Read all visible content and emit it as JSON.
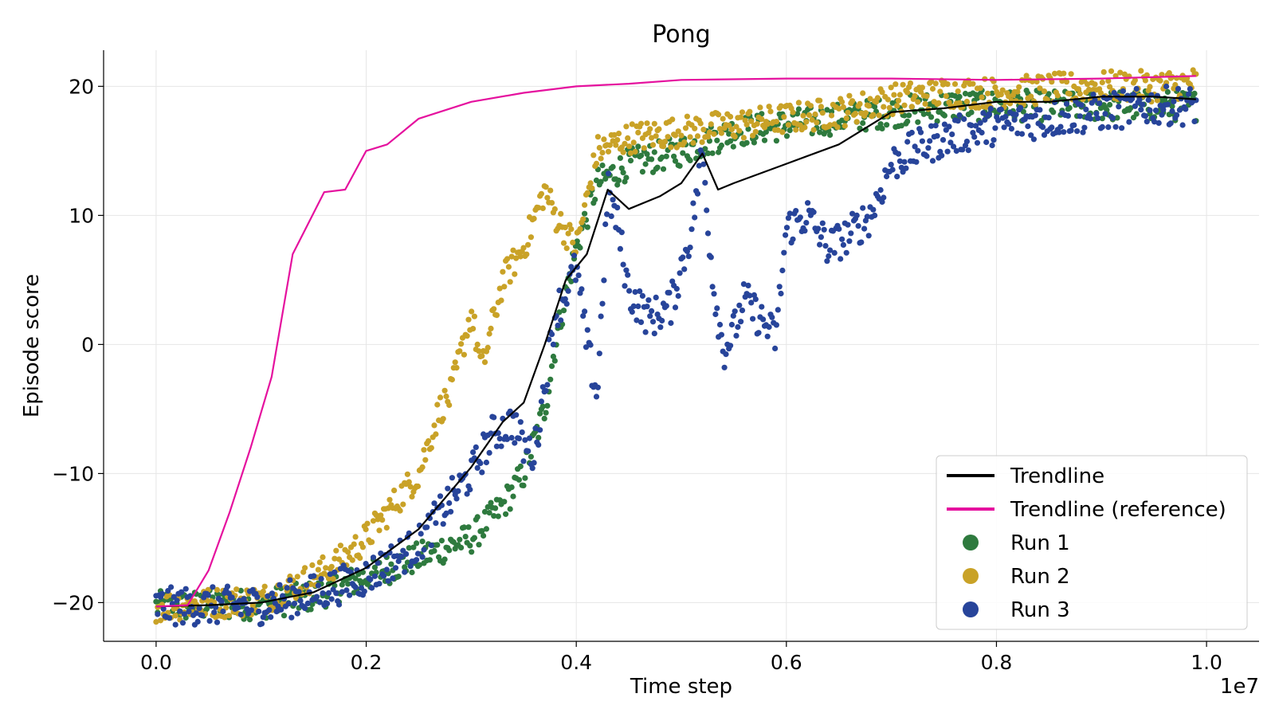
{
  "chart_data": {
    "type": "scatter",
    "title": "Pong",
    "xlabel": "Time step",
    "ylabel": "Episode score",
    "x_offset_label": "1e7",
    "xlim": [
      -0.05,
      1.05
    ],
    "ylim": [
      -23,
      22.8
    ],
    "x_ticks": [
      0.0,
      0.2,
      0.4,
      0.6,
      0.8,
      1.0
    ],
    "x_tick_labels": [
      "0.0",
      "0.2",
      "0.4",
      "0.6",
      "0.8",
      "1.0"
    ],
    "y_ticks": [
      -20,
      -10,
      0,
      10,
      20
    ],
    "y_tick_labels": [
      "−20",
      "−10",
      "0",
      "10",
      "20"
    ],
    "grid": true,
    "legend_position": "bottom-right",
    "series": [
      {
        "name": "Trendline",
        "kind": "line",
        "color": "#000000",
        "x": [
          0.0,
          0.05,
          0.1,
          0.15,
          0.2,
          0.25,
          0.3,
          0.33,
          0.35,
          0.37,
          0.39,
          0.41,
          0.43,
          0.45,
          0.48,
          0.5,
          0.52,
          0.535,
          0.55,
          0.6,
          0.65,
          0.7,
          0.75,
          0.8,
          0.85,
          0.9,
          0.95,
          0.99
        ],
        "y": [
          -20.3,
          -20.2,
          -20.0,
          -19.2,
          -17.3,
          -14.3,
          -9.5,
          -6.0,
          -4.5,
          0.0,
          5.0,
          7.0,
          12.0,
          10.5,
          11.5,
          12.5,
          14.8,
          12.0,
          12.5,
          14.0,
          15.5,
          18.0,
          18.3,
          18.8,
          18.8,
          19.2,
          19.2,
          19.0
        ]
      },
      {
        "name": "Trendline (reference)",
        "kind": "line",
        "color": "#e5119e",
        "x": [
          0.0,
          0.03,
          0.05,
          0.07,
          0.09,
          0.11,
          0.13,
          0.16,
          0.18,
          0.2,
          0.22,
          0.25,
          0.3,
          0.35,
          0.4,
          0.45,
          0.5,
          0.6,
          0.7,
          0.8,
          0.9,
          0.99
        ],
        "y": [
          -20.3,
          -20.2,
          -17.5,
          -13.0,
          -8.0,
          -2.5,
          7.0,
          11.8,
          12.0,
          15.0,
          15.5,
          17.5,
          18.8,
          19.5,
          20.0,
          20.2,
          20.5,
          20.6,
          20.6,
          20.5,
          20.6,
          20.8
        ]
      },
      {
        "name": "Run 1",
        "kind": "scatter",
        "color": "#2e7a3e",
        "spread": 1.2,
        "x": [
          0.0,
          0.1,
          0.15,
          0.2,
          0.25,
          0.3,
          0.33,
          0.35,
          0.37,
          0.38,
          0.39,
          0.4,
          0.42,
          0.45,
          0.5,
          0.55,
          0.6,
          0.65,
          0.7,
          0.75,
          0.8,
          0.85,
          0.9,
          0.95,
          0.99
        ],
        "y": [
          -20.3,
          -20.1,
          -19.5,
          -18.0,
          -16.5,
          -15.0,
          -12.5,
          -10.0,
          -5.0,
          0.0,
          4.0,
          7.5,
          12.5,
          14.0,
          15.0,
          16.5,
          17.0,
          17.5,
          18.0,
          18.5,
          18.5,
          18.5,
          18.5,
          18.5,
          18.5
        ]
      },
      {
        "name": "Run 2",
        "kind": "scatter",
        "color": "#c9a227",
        "spread": 1.2,
        "x": [
          0.0,
          0.1,
          0.15,
          0.18,
          0.2,
          0.22,
          0.25,
          0.27,
          0.28,
          0.3,
          0.31,
          0.33,
          0.35,
          0.37,
          0.38,
          0.4,
          0.42,
          0.45,
          0.5,
          0.55,
          0.6,
          0.65,
          0.7,
          0.75,
          0.8,
          0.85,
          0.9,
          0.95,
          0.99
        ],
        "y": [
          -20.3,
          -19.8,
          -18.0,
          -16.5,
          -15.0,
          -13.0,
          -10.0,
          -5.0,
          -4.0,
          2.5,
          -2.0,
          5.0,
          7.5,
          12.0,
          10.0,
          7.5,
          15.0,
          16.0,
          16.5,
          17.0,
          17.5,
          18.0,
          19.0,
          19.5,
          19.5,
          19.8,
          20.0,
          20.0,
          20.3
        ]
      },
      {
        "name": "Run 3",
        "kind": "scatter",
        "color": "#27449a",
        "spread": 1.5,
        "x": [
          0.0,
          0.1,
          0.15,
          0.2,
          0.25,
          0.28,
          0.3,
          0.32,
          0.34,
          0.35,
          0.36,
          0.37,
          0.38,
          0.39,
          0.4,
          0.41,
          0.42,
          0.43,
          0.44,
          0.45,
          0.47,
          0.49,
          0.5,
          0.51,
          0.52,
          0.53,
          0.54,
          0.55,
          0.56,
          0.58,
          0.59,
          0.6,
          0.62,
          0.64,
          0.66,
          0.68,
          0.7,
          0.72,
          0.75,
          0.8,
          0.85,
          0.9,
          0.95,
          0.99
        ],
        "y": [
          -20.3,
          -20.2,
          -19.3,
          -18.0,
          -15.5,
          -12.0,
          -10.0,
          -7.0,
          -6.0,
          -8.0,
          -8.5,
          -3.0,
          2.5,
          4.0,
          6.0,
          0.0,
          -4.0,
          12.0,
          9.0,
          4.0,
          2.0,
          3.0,
          6.0,
          9.0,
          15.0,
          5.0,
          -0.5,
          1.0,
          3.5,
          1.5,
          0.5,
          9.0,
          10.0,
          7.5,
          8.5,
          10.0,
          14.0,
          15.0,
          16.0,
          17.0,
          17.5,
          18.0,
          18.5,
          18.5
        ]
      }
    ]
  }
}
